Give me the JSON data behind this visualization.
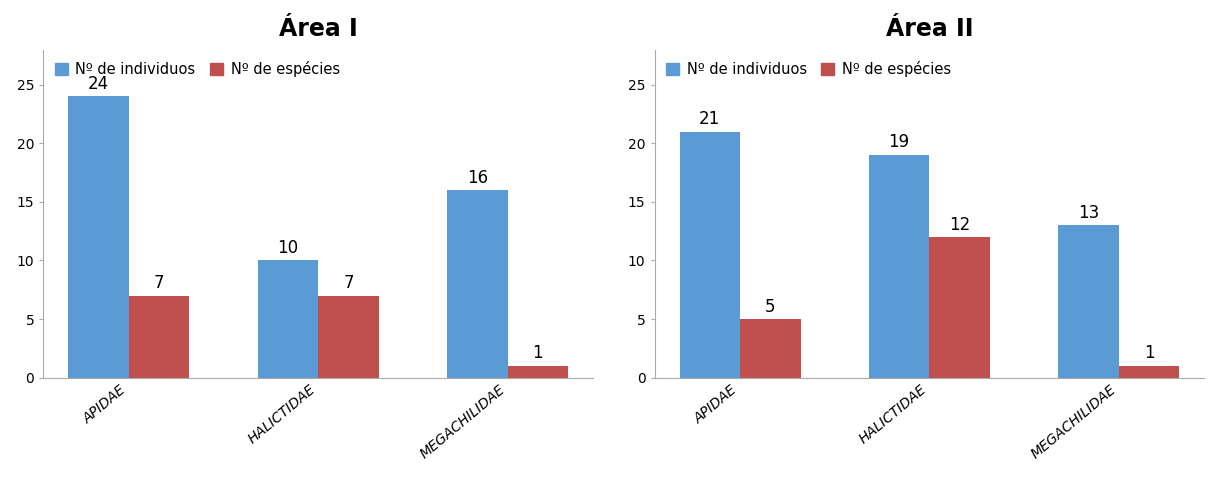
{
  "area1": {
    "title": "Área I",
    "categories": [
      "APIDAE",
      "HALICTIDAE",
      "MEGACHILIDAE"
    ],
    "individuos": [
      24,
      10,
      16
    ],
    "especies": [
      7,
      7,
      1
    ]
  },
  "area2": {
    "title": "Área II",
    "categories": [
      "APIDAE",
      "HALICTIDAE",
      "MEGACHILIDAE"
    ],
    "individuos": [
      21,
      19,
      13
    ],
    "especies": [
      5,
      12,
      1
    ]
  },
  "legend_individuos": "Nº de individuos",
  "legend_especies": "Nº de espécies",
  "color_individuos": "#5B9BD5",
  "color_especies": "#C0504D",
  "ylim": [
    0,
    28
  ],
  "yticks": [
    0,
    5,
    10,
    15,
    20,
    25
  ],
  "bar_width": 0.32,
  "title_fontsize": 17,
  "label_fontsize": 10,
  "tick_fontsize": 10,
  "annotation_fontsize": 12,
  "legend_fontsize": 10.5
}
